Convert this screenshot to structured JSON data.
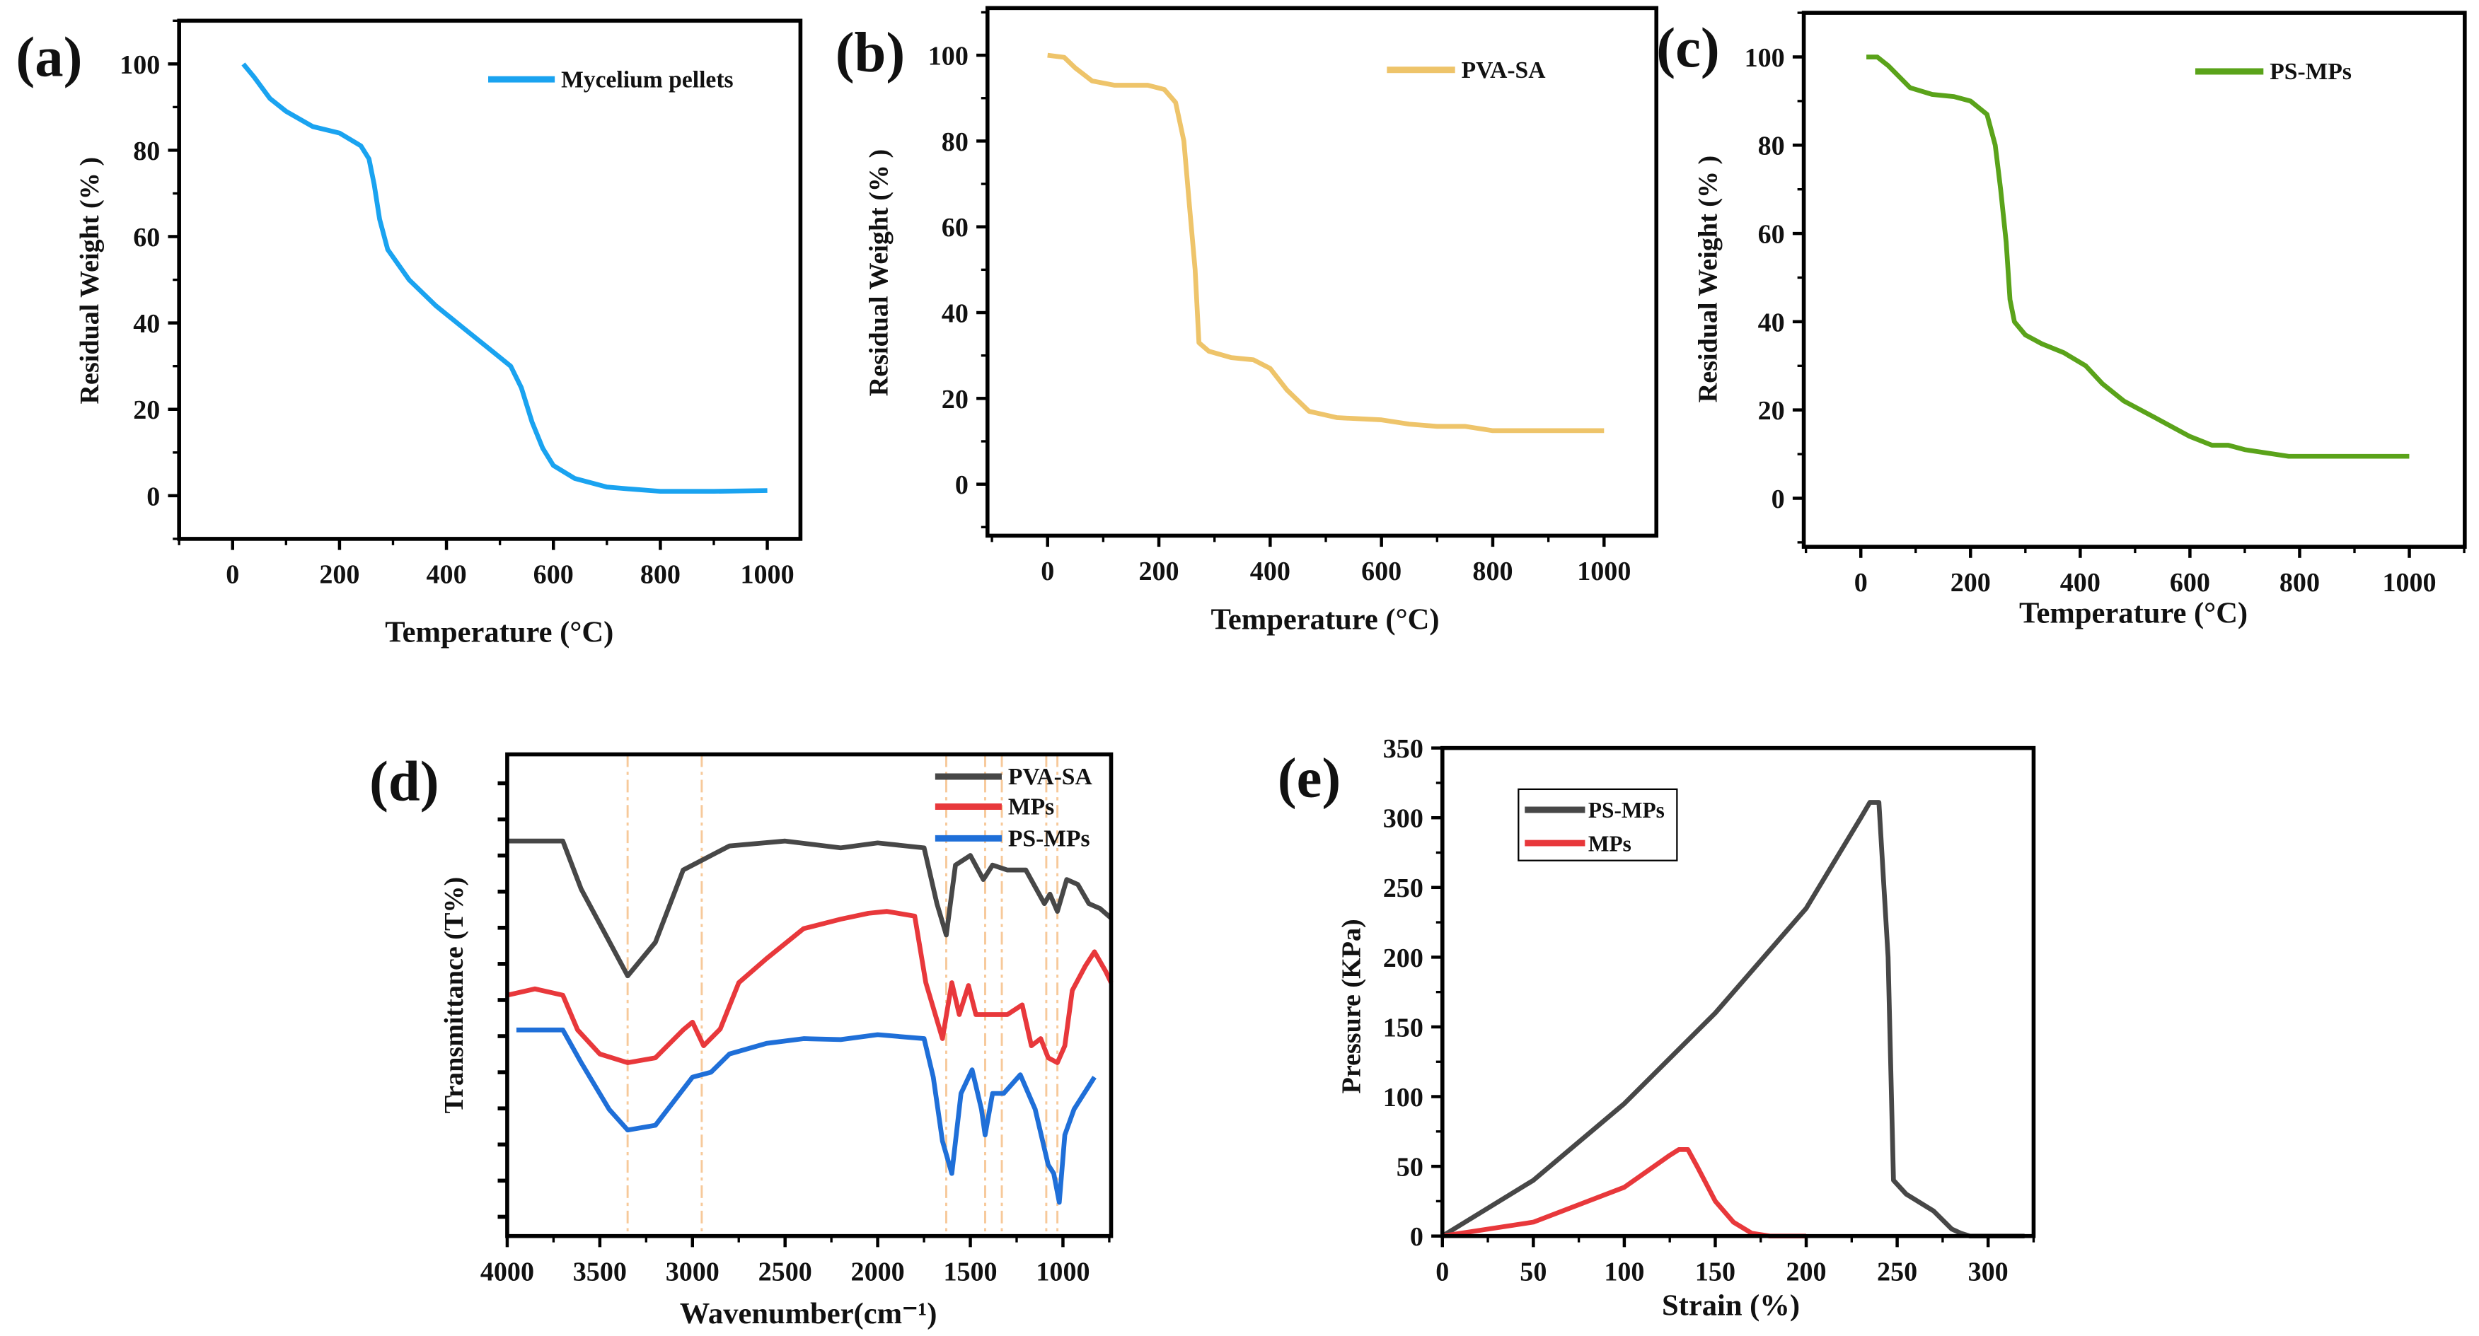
{
  "chart_data": [
    {
      "id": "a",
      "type": "line",
      "panel_label": "(a)",
      "xlabel": "Temperature (°C)",
      "ylabel": "Residual Weight (% )",
      "xlim": [
        -100,
        1062
      ],
      "ylim": [
        -10,
        110
      ],
      "xticks": [
        0,
        200,
        400,
        600,
        800,
        1000
      ],
      "yticks": [
        0,
        20,
        40,
        60,
        80,
        100
      ],
      "legend_position": "top-right",
      "series": [
        {
          "name": "Mycelium pellets",
          "color": "#1aa3f0",
          "points": [
            [
              20,
              100
            ],
            [
              40,
              97
            ],
            [
              70,
              92
            ],
            [
              100,
              89
            ],
            [
              150,
              85.5
            ],
            [
              200,
              84
            ],
            [
              240,
              81
            ],
            [
              255,
              78
            ],
            [
              265,
              72
            ],
            [
              275,
              64
            ],
            [
              290,
              57
            ],
            [
              330,
              50
            ],
            [
              380,
              44
            ],
            [
              430,
              39
            ],
            [
              480,
              34
            ],
            [
              520,
              30
            ],
            [
              540,
              25
            ],
            [
              560,
              17
            ],
            [
              580,
              11
            ],
            [
              600,
              7
            ],
            [
              640,
              4
            ],
            [
              700,
              2
            ],
            [
              750,
              1.5
            ],
            [
              800,
              1
            ],
            [
              900,
              1
            ],
            [
              1000,
              1.2
            ]
          ]
        }
      ]
    },
    {
      "id": "b",
      "type": "line",
      "panel_label": "(b)",
      "xlabel": "Temperature (°C)",
      "ylabel": "Residual Weight (% )",
      "xlim": [
        -108,
        1094
      ],
      "ylim": [
        -12,
        111
      ],
      "xticks": [
        0,
        200,
        400,
        600,
        800,
        1000
      ],
      "yticks": [
        0,
        20,
        40,
        60,
        80,
        100
      ],
      "legend_position": "top-right",
      "series": [
        {
          "name": "PVA-SA",
          "color": "#eec46a",
          "points": [
            [
              0,
              100
            ],
            [
              30,
              99.5
            ],
            [
              50,
              97
            ],
            [
              80,
              94
            ],
            [
              120,
              93
            ],
            [
              180,
              93
            ],
            [
              210,
              92
            ],
            [
              230,
              89
            ],
            [
              245,
              80
            ],
            [
              255,
              65
            ],
            [
              265,
              50
            ],
            [
              272,
              33
            ],
            [
              290,
              31
            ],
            [
              330,
              29.5
            ],
            [
              370,
              29
            ],
            [
              400,
              27
            ],
            [
              430,
              22
            ],
            [
              470,
              17
            ],
            [
              520,
              15.5
            ],
            [
              600,
              15
            ],
            [
              650,
              14
            ],
            [
              700,
              13.5
            ],
            [
              750,
              13.5
            ],
            [
              800,
              12.5
            ],
            [
              1000,
              12.5
            ]
          ]
        }
      ]
    },
    {
      "id": "c",
      "type": "line",
      "panel_label": "(c)",
      "xlabel": "Temperature (°C)",
      "ylabel": "Residual Weight (% )",
      "xlim": [
        -104,
        1101
      ],
      "ylim": [
        -11,
        110
      ],
      "xticks": [
        0,
        200,
        400,
        600,
        800,
        1000
      ],
      "yticks": [
        0,
        20,
        40,
        60,
        80,
        100
      ],
      "legend_position": "top-right",
      "series": [
        {
          "name": "PS-MPs",
          "color": "#5aa31a",
          "points": [
            [
              10,
              100
            ],
            [
              30,
              100
            ],
            [
              50,
              98
            ],
            [
              90,
              93
            ],
            [
              130,
              91.5
            ],
            [
              170,
              91
            ],
            [
              200,
              90
            ],
            [
              230,
              87
            ],
            [
              245,
              80
            ],
            [
              255,
              70
            ],
            [
              265,
              58
            ],
            [
              272,
              45
            ],
            [
              280,
              40
            ],
            [
              300,
              37
            ],
            [
              330,
              35
            ],
            [
              370,
              33
            ],
            [
              410,
              30
            ],
            [
              440,
              26
            ],
            [
              480,
              22
            ],
            [
              540,
              18
            ],
            [
              600,
              14
            ],
            [
              640,
              12
            ],
            [
              670,
              12
            ],
            [
              700,
              11
            ],
            [
              780,
              9.5
            ],
            [
              1000,
              9.5
            ]
          ]
        }
      ]
    },
    {
      "id": "d",
      "type": "line",
      "panel_label": "(d)",
      "xlabel": "Wavenumber(cm⁻¹)",
      "ylabel": "Transmittance (T%)",
      "xlim": [
        4000,
        740
      ],
      "ylim": [
        0,
        100
      ],
      "xticks": [
        4000,
        3500,
        3000,
        2500,
        2000,
        1500,
        1000
      ],
      "yticks": [],
      "reference_lines": [
        3350,
        2950,
        1630,
        1420,
        1330,
        1090,
        1030
      ],
      "legend_position": "top-right",
      "series": [
        {
          "name": "PVA-SA",
          "color": "#474747",
          "points": [
            [
              4000,
              82
            ],
            [
              3700,
              82
            ],
            [
              3600,
              72
            ],
            [
              3350,
              54
            ],
            [
              3200,
              61
            ],
            [
              3050,
              76
            ],
            [
              2950,
              78
            ],
            [
              2800,
              81
            ],
            [
              2500,
              82
            ],
            [
              2200,
              80.6
            ],
            [
              2000,
              81.6
            ],
            [
              1750,
              80.6
            ],
            [
              1680,
              69
            ],
            [
              1630,
              62.5
            ],
            [
              1580,
              77
            ],
            [
              1500,
              79
            ],
            [
              1430,
              74
            ],
            [
              1380,
              77
            ],
            [
              1300,
              76
            ],
            [
              1200,
              76
            ],
            [
              1100,
              69
            ],
            [
              1070,
              71
            ],
            [
              1030,
              67.4
            ],
            [
              980,
              74
            ],
            [
              920,
              73
            ],
            [
              860,
              69
            ],
            [
              800,
              68
            ],
            [
              740,
              66
            ]
          ]
        },
        {
          "name": "MPs",
          "color": "#e8383b",
          "points": [
            [
              4000,
              50
            ],
            [
              3850,
              51.3
            ],
            [
              3700,
              50
            ],
            [
              3620,
              42.8
            ],
            [
              3500,
              37.8
            ],
            [
              3350,
              36
            ],
            [
              3200,
              37
            ],
            [
              3050,
              42.8
            ],
            [
              3000,
              44.4
            ],
            [
              2940,
              39.5
            ],
            [
              2850,
              43
            ],
            [
              2750,
              52.6
            ],
            [
              2600,
              57.6
            ],
            [
              2400,
              63.8
            ],
            [
              2200,
              65.8
            ],
            [
              2050,
              67
            ],
            [
              1950,
              67.4
            ],
            [
              1800,
              66.4
            ],
            [
              1740,
              52.6
            ],
            [
              1650,
              41
            ],
            [
              1600,
              52.6
            ],
            [
              1560,
              46
            ],
            [
              1510,
              52
            ],
            [
              1470,
              46
            ],
            [
              1400,
              46
            ],
            [
              1300,
              46
            ],
            [
              1220,
              48
            ],
            [
              1170,
              39.5
            ],
            [
              1120,
              41
            ],
            [
              1080,
              37
            ],
            [
              1030,
              36
            ],
            [
              990,
              39.5
            ],
            [
              950,
              51
            ],
            [
              880,
              56
            ],
            [
              830,
              59
            ],
            [
              770,
              55
            ],
            [
              740,
              52.6
            ]
          ]
        },
        {
          "name": "PS-MPs",
          "color": "#1f6fd8",
          "points": [
            [
              3950,
              42.8
            ],
            [
              3700,
              42.8
            ],
            [
              3600,
              36
            ],
            [
              3450,
              26.3
            ],
            [
              3350,
              22
            ],
            [
              3200,
              23
            ],
            [
              3000,
              33
            ],
            [
              2900,
              34
            ],
            [
              2800,
              37.8
            ],
            [
              2600,
              40
            ],
            [
              2400,
              41
            ],
            [
              2200,
              40.8
            ],
            [
              2000,
              41.8
            ],
            [
              1750,
              41
            ],
            [
              1700,
              33
            ],
            [
              1650,
              19.7
            ],
            [
              1600,
              13
            ],
            [
              1550,
              29.6
            ],
            [
              1490,
              34.5
            ],
            [
              1440,
              26.3
            ],
            [
              1420,
              21
            ],
            [
              1380,
              29.6
            ],
            [
              1320,
              29.6
            ],
            [
              1230,
              33.5
            ],
            [
              1150,
              26.3
            ],
            [
              1080,
              14.8
            ],
            [
              1050,
              13
            ],
            [
              1020,
              7
            ],
            [
              990,
              21
            ],
            [
              940,
              26.3
            ],
            [
              830,
              33
            ]
          ]
        }
      ]
    },
    {
      "id": "e",
      "type": "line",
      "panel_label": "(e)",
      "xlabel": "Strain (%)",
      "ylabel": "Pressure (KPa)",
      "xlim": [
        0,
        325
      ],
      "ylim": [
        0,
        350
      ],
      "xticks": [
        0,
        50,
        100,
        150,
        200,
        250,
        300
      ],
      "yticks": [
        0,
        50,
        100,
        150,
        200,
        250,
        300,
        350
      ],
      "legend_position": "top-left",
      "series": [
        {
          "name": "PS-MPs",
          "color": "#474747",
          "points": [
            [
              0,
              0
            ],
            [
              50,
              40
            ],
            [
              100,
              95
            ],
            [
              150,
              160
            ],
            [
              200,
              235
            ],
            [
              230,
              300
            ],
            [
              235,
              311
            ],
            [
              240,
              311
            ],
            [
              245,
              200
            ],
            [
              248,
              40
            ],
            [
              255,
              30
            ],
            [
              270,
              18
            ],
            [
              280,
              5
            ],
            [
              285,
              2
            ],
            [
              290,
              0
            ],
            [
              320,
              0
            ]
          ]
        },
        {
          "name": "MPs",
          "color": "#e8383b",
          "points": [
            [
              0,
              0
            ],
            [
              50,
              10
            ],
            [
              100,
              35
            ],
            [
              125,
              58
            ],
            [
              130,
              62
            ],
            [
              135,
              62
            ],
            [
              140,
              50
            ],
            [
              150,
              25
            ],
            [
              160,
              10
            ],
            [
              170,
              2
            ],
            [
              180,
              0
            ],
            [
              200,
              0
            ]
          ]
        }
      ]
    }
  ]
}
